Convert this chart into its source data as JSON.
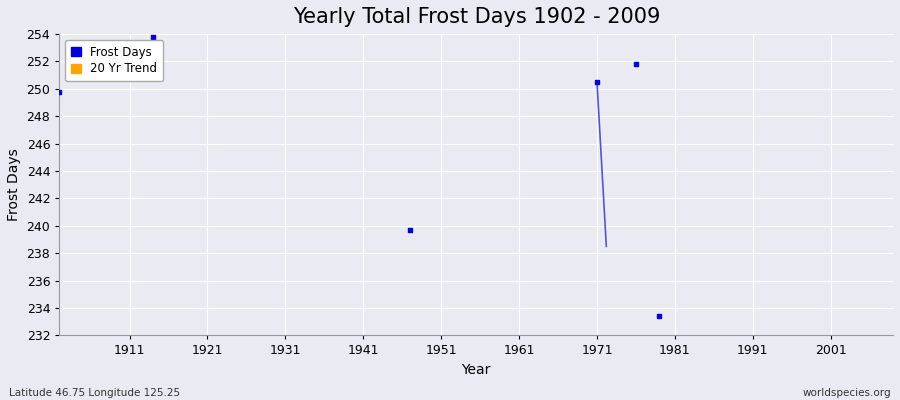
{
  "title": "Yearly Total Frost Days 1902 - 2009",
  "xlabel": "Year",
  "ylabel": "Frost Days",
  "xlim": [
    1902,
    2009
  ],
  "ylim": [
    232,
    254
  ],
  "yticks": [
    232,
    234,
    236,
    238,
    240,
    242,
    244,
    246,
    248,
    250,
    252,
    254
  ],
  "xticks": [
    1911,
    1921,
    1931,
    1941,
    1951,
    1961,
    1971,
    1981,
    1991,
    2001
  ],
  "scatter_x": [
    1902,
    1914,
    1947,
    1971,
    1976,
    1979
  ],
  "scatter_y": [
    249.8,
    253.8,
    239.7,
    250.5,
    251.8,
    233.4
  ],
  "trend_x": [
    1971.0,
    1972.2
  ],
  "trend_y": [
    250.5,
    238.5
  ],
  "scatter_color": "#0000dd",
  "trend_color": "#5555cc",
  "background_color": "#eaeaf2",
  "grid_color": "#ffffff",
  "legend_frost_color": "#0000dd",
  "legend_trend_color": "#FFA500",
  "title_fontsize": 15,
  "axis_label_fontsize": 10,
  "tick_fontsize": 9,
  "footer_left": "Latitude 46.75 Longitude 125.25",
  "footer_right": "worldspecies.org"
}
